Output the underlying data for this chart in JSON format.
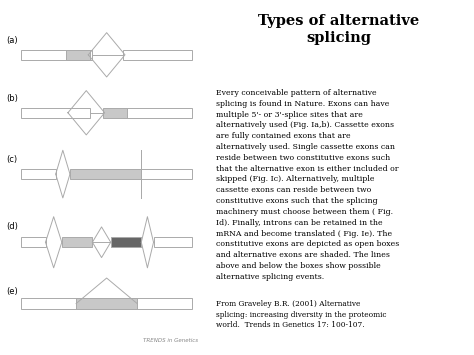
{
  "title": "Types of alternative\nsplicing",
  "trends_label": "TRENDS in Genetics",
  "bg_color": "#e8e8e8",
  "box_edge_color": "#aaaaaa",
  "light_gray": "#c8c8c8",
  "dark_gray": "#666666",
  "link_color": "#6666cc",
  "rows": [
    8.6,
    6.9,
    5.1,
    3.1,
    1.3
  ],
  "labels": [
    "(a)",
    "(b)",
    "(c)",
    "(d)",
    "(e)"
  ]
}
